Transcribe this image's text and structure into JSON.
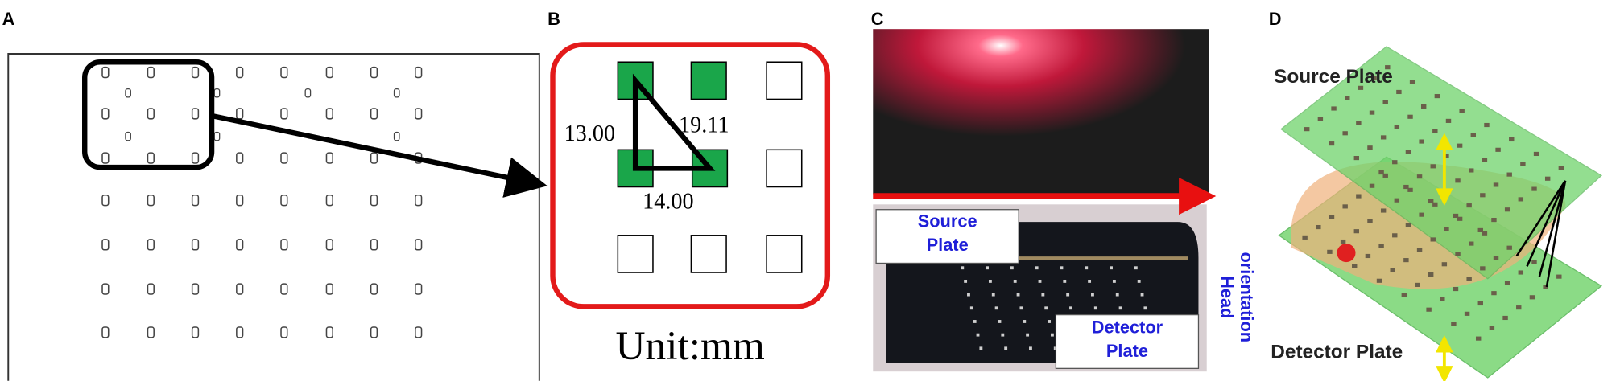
{
  "panels": [
    {
      "label": "A"
    },
    {
      "label": "B",
      "distances": [
        "13.00",
        "19.11",
        "14.00"
      ],
      "unit": "Unit:mm"
    },
    {
      "label": "C",
      "source_plate": [
        "Source",
        "Plate"
      ],
      "detector_plate": [
        "Detector",
        "Plate"
      ],
      "orientation": [
        "Head",
        "orientation"
      ]
    },
    {
      "label": "D",
      "source_plate": "Source Plate",
      "detector_plate": "Detector Plate"
    }
  ]
}
